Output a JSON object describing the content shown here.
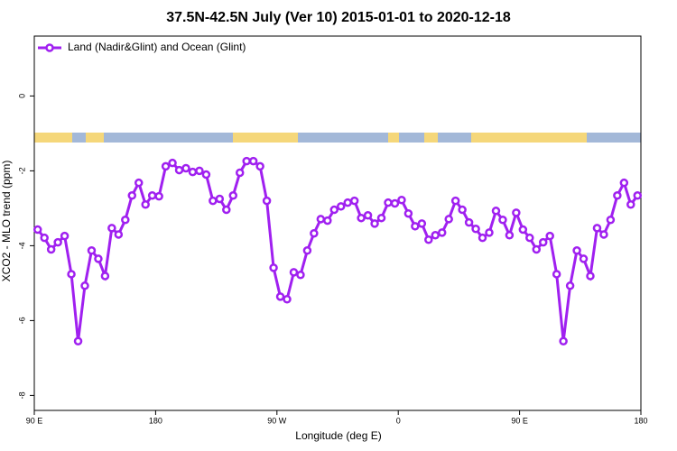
{
  "chart_data": {
    "type": "line",
    "title": "37.5N-42.5N July (Ver 10)   2015-01-01 to 2020-12-18",
    "x_label": "Longitude (deg E)",
    "y_label": "XCO2 - MLO trend (ppm)",
    "xlim": [
      90,
      540
    ],
    "xticks": [
      {
        "value": 90,
        "label": "90 E"
      },
      180,
      {
        "value": 270,
        "label": "90 W"
      },
      {
        "value": 360,
        "label": "0"
      },
      {
        "value": 450,
        "label": "90 E"
      },
      {
        "value": 540,
        "label": "180"
      }
    ],
    "ylim": [
      -8.4,
      1.6
    ],
    "yticks": [
      0,
      -2,
      -4,
      -6,
      -8
    ],
    "legend": "top-left",
    "x": [
      92.5,
      97.5,
      102.5,
      107.5,
      112.5,
      117.5,
      122.5,
      127.5,
      132.5,
      137.5,
      142.5,
      147.5,
      152.5,
      157.5,
      162.5,
      167.5,
      172.5,
      177.5,
      182.5,
      187.5,
      192.5,
      197.5,
      202.5,
      207.5,
      212.5,
      217.5,
      222.5,
      227.5,
      232.5,
      237.5,
      242.5,
      247.5,
      252.5,
      257.5,
      262.5,
      267.5,
      272.5,
      277.5,
      282.5,
      287.5,
      292.5,
      297.5,
      302.5,
      307.5,
      312.5,
      317.5,
      322.5,
      327.5,
      332.5,
      337.5,
      342.5,
      347.5,
      352.5,
      357.5,
      362.5,
      367.5,
      372.5,
      377.5,
      382.5,
      387.5,
      392.5,
      397.5,
      402.5,
      407.5,
      412.5,
      417.5,
      422.5,
      427.5,
      432.5,
      437.5,
      442.5,
      447.5,
      452.5,
      457.5,
      462.5,
      467.5,
      472.5,
      477.5,
      482.5,
      487.5,
      492.5,
      497.5,
      502.5,
      507.5,
      512.5,
      517.5,
      522.5,
      527.5,
      532.5,
      537.5
    ],
    "series": [
      {
        "name": "Land (Nadir&Glint) and Ocean (Glint)",
        "color": "#a020f0",
        "values": [
          -3.57,
          -3.79,
          -4.1,
          -3.91,
          -3.74,
          -4.76,
          -6.55,
          -5.07,
          -4.13,
          -4.35,
          -4.81,
          -3.53,
          -3.7,
          -3.31,
          -2.66,
          -2.32,
          -2.9,
          -2.66,
          -2.68,
          -1.88,
          -1.79,
          -1.98,
          -1.93,
          -2.03,
          -2.0,
          -2.1,
          -2.8,
          -2.75,
          -3.04,
          -2.66,
          -2.05,
          -1.74,
          -1.74,
          -1.88,
          -2.8,
          -4.59,
          -5.36,
          -5.43,
          -4.71,
          -4.78,
          -4.13,
          -3.67,
          -3.29,
          -3.33,
          -3.04,
          -2.95,
          -2.85,
          -2.8,
          -3.26,
          -3.19,
          -3.41,
          -3.26,
          -2.85,
          -2.87,
          -2.78,
          -3.14,
          -3.48,
          -3.41,
          -3.84,
          -3.72,
          -3.65,
          -3.29,
          -2.8,
          -3.04,
          -3.38,
          -3.55,
          -3.79,
          -3.65,
          -3.07,
          -3.31,
          -3.72,
          -3.12,
          -3.57,
          -3.79,
          -4.1,
          -3.91,
          -3.74,
          -4.76,
          -6.55,
          -5.07,
          -4.13,
          -4.35,
          -4.81,
          -3.53,
          -3.7,
          -3.31,
          -2.66,
          -2.32,
          -2.9,
          -2.66
        ]
      }
    ]
  }
}
